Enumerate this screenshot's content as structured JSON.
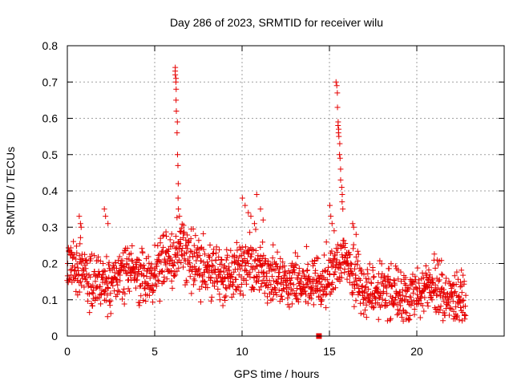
{
  "chart_data": {
    "type": "scatter",
    "title": "Day 286 of 2023, SRMTID for receiver wilu",
    "xlabel": "GPS time / hours",
    "ylabel": "SRMTID / TECUs",
    "xlim": [
      0,
      25
    ],
    "ylim": [
      0,
      0.8
    ],
    "xticks": [
      0,
      5,
      10,
      15,
      20
    ],
    "xtick_labels": [
      "0",
      "5",
      "10",
      "15",
      "20"
    ],
    "yticks": [
      0,
      0.1,
      0.2,
      0.3,
      0.4,
      0.5,
      0.6,
      0.7,
      0.8
    ],
    "ytick_labels": [
      "0",
      "0.1",
      "0.2",
      "0.3",
      "0.4",
      "0.5",
      "0.6",
      "0.7",
      "0.8"
    ],
    "grid": true,
    "marker": "+",
    "color": "#e60000",
    "profile": [
      [
        0.0,
        0.19
      ],
      [
        0.5,
        0.2
      ],
      [
        1.0,
        0.17
      ],
      [
        1.5,
        0.14
      ],
      [
        2.0,
        0.15
      ],
      [
        2.5,
        0.15
      ],
      [
        3.0,
        0.17
      ],
      [
        3.5,
        0.18
      ],
      [
        4.0,
        0.17
      ],
      [
        4.5,
        0.16
      ],
      [
        5.0,
        0.19
      ],
      [
        5.5,
        0.2
      ],
      [
        6.0,
        0.22
      ],
      [
        6.5,
        0.25
      ],
      [
        7.0,
        0.21
      ],
      [
        7.5,
        0.2
      ],
      [
        8.0,
        0.19
      ],
      [
        8.5,
        0.17
      ],
      [
        9.0,
        0.16
      ],
      [
        9.5,
        0.17
      ],
      [
        10.0,
        0.19
      ],
      [
        10.5,
        0.2
      ],
      [
        11.0,
        0.19
      ],
      [
        11.5,
        0.17
      ],
      [
        12.0,
        0.16
      ],
      [
        12.5,
        0.15
      ],
      [
        13.0,
        0.15
      ],
      [
        13.5,
        0.16
      ],
      [
        14.0,
        0.15
      ],
      [
        14.5,
        0.13
      ],
      [
        15.0,
        0.16
      ],
      [
        15.5,
        0.22
      ],
      [
        16.0,
        0.2
      ],
      [
        16.5,
        0.16
      ],
      [
        17.0,
        0.13
      ],
      [
        17.5,
        0.12
      ],
      [
        18.0,
        0.13
      ],
      [
        18.5,
        0.12
      ],
      [
        19.0,
        0.11
      ],
      [
        19.5,
        0.11
      ],
      [
        20.0,
        0.12
      ],
      [
        20.5,
        0.13
      ],
      [
        21.0,
        0.14
      ],
      [
        21.5,
        0.12
      ],
      [
        22.0,
        0.1
      ],
      [
        22.5,
        0.09
      ],
      [
        22.8,
        0.09
      ]
    ],
    "spikes": [
      {
        "x_range": [
          6.15,
          6.4
        ],
        "values": [
          0.74,
          0.73,
          0.72,
          0.71,
          0.7,
          0.68,
          0.65,
          0.62,
          0.59,
          0.56,
          0.5,
          0.47,
          0.42,
          0.38,
          0.35,
          0.33
        ]
      },
      {
        "x_range": [
          15.4,
          15.75
        ],
        "values": [
          0.7,
          0.69,
          0.67,
          0.63,
          0.59,
          0.58,
          0.57,
          0.56,
          0.55,
          0.53,
          0.5,
          0.49,
          0.46,
          0.43,
          0.41,
          0.39,
          0.37,
          0.35
        ]
      },
      {
        "x_range": [
          10.0,
          11.2
        ],
        "values": [
          0.38,
          0.36,
          0.34,
          0.33,
          0.31,
          0.39,
          0.35,
          0.32
        ]
      },
      {
        "x_range": [
          2.1,
          2.3
        ],
        "values": [
          0.35,
          0.33,
          0.31
        ]
      },
      {
        "x_range": [
          0.7,
          0.8
        ],
        "values": [
          0.33,
          0.31,
          0.3
        ]
      },
      {
        "x_range": [
          15.0,
          15.25
        ],
        "values": [
          0.36,
          0.33,
          0.31,
          0.29
        ]
      },
      {
        "x_range": [
          16.3,
          16.5
        ],
        "values": [
          0.31,
          0.3,
          0.28
        ]
      }
    ],
    "highlight_point": {
      "x": 14.4,
      "y": 0.0
    }
  }
}
